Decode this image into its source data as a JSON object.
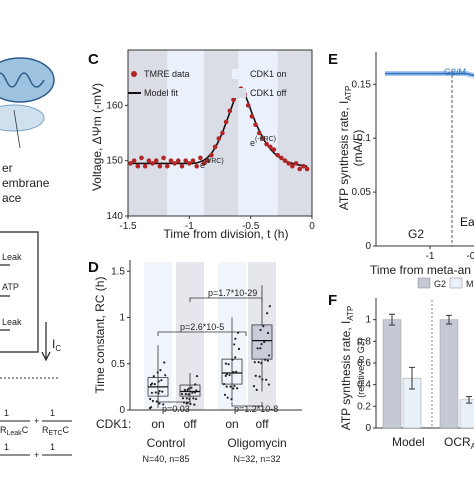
{
  "panels": {
    "C": "C",
    "D": "D",
    "E": "E",
    "F": "F"
  },
  "left_fragments": {
    "line1": "er",
    "line2": "embrane",
    "line3": "ace",
    "atp": "ATP",
    "leak1": "Leak",
    "leak2": "Leak",
    "ic": "I",
    "ic_sub": "C",
    "eq_leak": "Leak",
    "eq_etc": "ETC"
  },
  "chart_data": [
    {
      "id": "C",
      "type": "scatter",
      "xlabel": "Time from division, t (h)",
      "ylabel": "Voltage, ΔΨm (-mV)",
      "xlim": [
        -1.5,
        0
      ],
      "ylim": [
        140,
        170
      ],
      "xticks": [
        "-1.5",
        "-1",
        "-0.5",
        "0"
      ],
      "yticks": [
        "140",
        "150",
        "160"
      ],
      "legend": [
        "TMRE data",
        "Model fit",
        "CDK1 on",
        "CDK1 off"
      ],
      "annotations": [
        "e(t/RC)",
        "e(-t/RC)"
      ],
      "x": [
        -1.48,
        -1.45,
        -1.42,
        -1.39,
        -1.36,
        -1.33,
        -1.3,
        -1.27,
        -1.24,
        -1.21,
        -1.18,
        -1.15,
        -1.12,
        -1.09,
        -1.06,
        -1.03,
        -1.0,
        -0.97,
        -0.94,
        -0.91,
        -0.88,
        -0.85,
        -0.82,
        -0.79,
        -0.76,
        -0.73,
        -0.7,
        -0.67,
        -0.64,
        -0.61,
        -0.58,
        -0.55,
        -0.52,
        -0.49,
        -0.46,
        -0.43,
        -0.4,
        -0.37,
        -0.34,
        -0.31,
        -0.28,
        -0.25,
        -0.22,
        -0.19,
        -0.16,
        -0.13,
        -0.1,
        -0.07,
        -0.04
      ],
      "y": [
        149.5,
        150,
        149,
        150.5,
        149,
        150,
        149.5,
        150,
        149,
        150.5,
        149,
        150,
        149.5,
        150,
        149,
        150,
        149.5,
        150,
        149,
        150.5,
        149.5,
        150,
        151,
        152.5,
        154,
        155,
        157,
        159,
        161,
        162.5,
        163,
        162,
        160,
        158,
        156.5,
        155,
        154,
        153,
        152.5,
        152,
        151,
        150.5,
        150,
        149.5,
        149,
        149.5,
        148.5,
        149,
        148.5
      ],
      "fit_y": [
        149.5,
        149.5,
        149.5,
        149.5,
        149.5,
        149.5,
        149.5,
        149.5,
        149.5,
        149.5,
        149.5,
        149.5,
        149.5,
        149.5,
        149.5,
        149.5,
        149.5,
        149.5,
        149.6,
        149.8,
        150.1,
        150.6,
        151.3,
        152.3,
        153.6,
        155.1,
        156.9,
        158.7,
        160.6,
        162.1,
        163,
        162.1,
        160.5,
        158.6,
        156.9,
        155.4,
        154.1,
        153,
        152.1,
        151.4,
        150.8,
        150.4,
        150,
        149.7,
        149.5,
        149.3,
        149.2,
        149.1,
        149
      ],
      "off_bands": [
        [
          -1.5,
          -1.18
        ],
        [
          -0.88,
          -0.6
        ],
        [
          -0.28,
          0
        ]
      ]
    },
    {
      "id": "D",
      "type": "box",
      "ylabel": "Time constant, RC (h)",
      "xlabel": "CDK1:",
      "ylim": [
        0,
        1.6
      ],
      "yticks": [
        "0",
        "0.5",
        "1",
        "1.5"
      ],
      "categories": [
        "on",
        "off",
        "on",
        "off"
      ],
      "groups": [
        "Control",
        "Oligomycin"
      ],
      "group_n": [
        "N=40, n=85",
        "N=32, n=32"
      ],
      "medians": [
        0.25,
        0.2,
        0.4,
        0.75
      ],
      "q1": [
        0.15,
        0.15,
        0.28,
        0.55
      ],
      "q3": [
        0.35,
        0.27,
        0.55,
        0.92
      ],
      "whisker_low": [
        0.02,
        0.05,
        0.1,
        0.2
      ],
      "whisker_high": [
        0.7,
        0.4,
        1.0,
        1.35
      ],
      "pvalues": [
        "p=2.6*10-5",
        "p=0.03",
        "p=1.7*10-29",
        "p=1.2*10-8"
      ]
    },
    {
      "id": "E",
      "type": "line",
      "xlabel": "Time from meta-an",
      "ylabel": "ATP synthesis rate, I",
      "ylabel_sub": "ATP",
      "ylabel_unit": "(mA/F)",
      "xlim": [
        -1.5,
        0
      ],
      "ylim": [
        0,
        0.18
      ],
      "yticks": [
        "0",
        "0.05",
        "0.1",
        "0.15"
      ],
      "xticks": [
        "-1",
        "-0.5"
      ],
      "annotations": [
        "G2/M",
        "G2",
        "Ea"
      ],
      "x": [
        -1.5,
        -1.2,
        -0.9,
        -0.6,
        -0.5,
        -0.45,
        -0.4,
        -0.35,
        -0.3,
        -0.25
      ],
      "y": [
        0.16,
        0.16,
        0.16,
        0.16,
        0.158,
        0.15,
        0.12,
        0.07,
        0.03,
        0.01
      ]
    },
    {
      "id": "F",
      "type": "bar",
      "ylabel": "ATP synthesis rate, I",
      "ylabel_sub": "ATP",
      "ylabel2": "(relative to G2)",
      "ylim": [
        0,
        1.2
      ],
      "yticks": [
        "0",
        "0.2",
        "0.4",
        "0.6",
        "0.8",
        "1"
      ],
      "categories": [
        "Model",
        "OCR"
      ],
      "category_sub": [
        "",
        "AT"
      ],
      "series": [
        {
          "name": "G2",
          "color": "#c5c9d6",
          "values": [
            1.0,
            1.0
          ],
          "err": [
            0.05,
            0.04
          ]
        },
        {
          "name": "M",
          "color": "#e9f1f8",
          "values": [
            0.46,
            0.26
          ],
          "err": [
            0.1,
            0.03
          ]
        }
      ]
    }
  ],
  "colors": {
    "tmre": "#b32525",
    "cdk_on": "#eaf1fa",
    "cdk_off": "#dadde6",
    "line_blue": "#2f73c4",
    "red_region": "#e24a4a"
  }
}
